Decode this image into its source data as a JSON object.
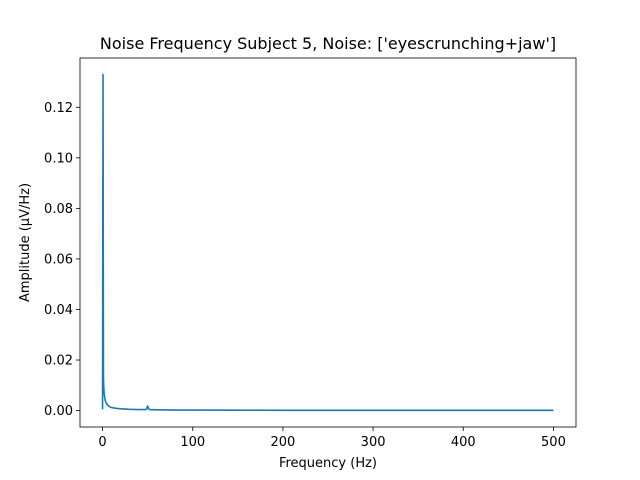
{
  "chart_data": {
    "type": "line",
    "title": "Noise Frequency Subject 5, Noise: ['eyescrunching+jaw']",
    "xlabel": "Frequency (Hz)",
    "ylabel": "Amplitude (µV/Hz)",
    "xlim": [
      -25,
      525
    ],
    "ylim": [
      -0.0065,
      0.1395
    ],
    "xticks": [
      0,
      100,
      200,
      300,
      400,
      500
    ],
    "xtick_labels": [
      "0",
      "100",
      "200",
      "300",
      "400",
      "500"
    ],
    "yticks": [
      0.0,
      0.02,
      0.04,
      0.06,
      0.08,
      0.1,
      0.12
    ],
    "ytick_labels": [
      "0.00",
      "0.02",
      "0.04",
      "0.06",
      "0.08",
      "0.10",
      "0.12"
    ],
    "grid": false,
    "color": "#1f77b4",
    "series": [
      {
        "x": [
          0,
          0.5,
          1,
          1.5,
          2,
          2.5,
          3,
          4,
          5,
          6,
          8,
          10,
          15,
          20,
          30,
          40,
          48,
          49,
          50,
          51,
          52,
          60,
          80,
          100,
          150,
          200,
          250,
          300,
          350,
          400,
          450,
          500
        ],
        "y": [
          0.0005,
          0.133,
          0.013,
          0.008,
          0.006,
          0.005,
          0.004,
          0.003,
          0.0025,
          0.002,
          0.0015,
          0.0012,
          0.0009,
          0.0007,
          0.0005,
          0.0004,
          0.0004,
          0.0008,
          0.0018,
          0.0008,
          0.0004,
          0.0003,
          0.0002,
          0.0002,
          0.00015,
          0.0001,
          0.0001,
          0.0001,
          0.0001,
          0.0001,
          0.0001,
          0.0001
        ]
      }
    ]
  }
}
